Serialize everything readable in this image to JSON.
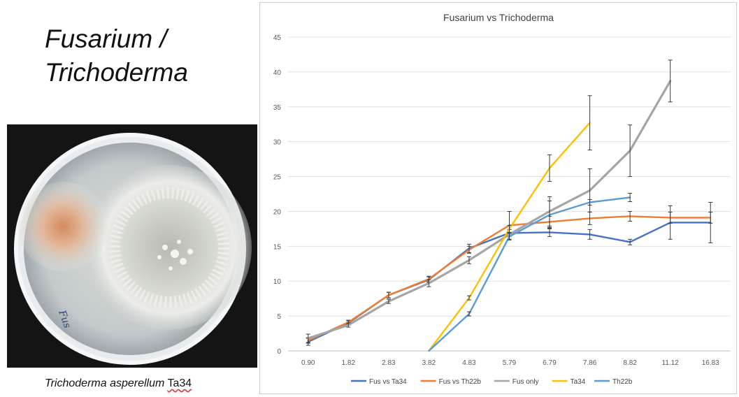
{
  "slide": {
    "title": "Fusarium /\nTrichoderma",
    "caption_species": "Trichoderma asperellum",
    "caption_strain": "Ta34"
  },
  "photo": {
    "handwritten_label": "Fus"
  },
  "chart_data": {
    "type": "line",
    "title": "Fusarium vs Trichoderma",
    "categories": [
      "0.90",
      "1.82",
      "2.83",
      "3.82",
      "4.83",
      "5.79",
      "6.79",
      "7.86",
      "8.82",
      "11.12",
      "16.83"
    ],
    "ylim": [
      0,
      45
    ],
    "yticks": [
      0,
      5,
      10,
      15,
      20,
      25,
      30,
      35,
      40,
      45
    ],
    "xlabel": "",
    "ylabel": "",
    "grid": "horizontal",
    "legend": "bottom",
    "series": [
      {
        "name": "Fus vs Ta34",
        "color": "#4472c4",
        "values": [
          1.3,
          4.0,
          8.0,
          10.2,
          14.7,
          16.9,
          17.0,
          16.7,
          15.6,
          18.4,
          18.4
        ],
        "errors": [
          0.5,
          0.3,
          0.4,
          0.4,
          0.6,
          0.5,
          0.6,
          0.7,
          0.4,
          2.4,
          2.9
        ]
      },
      {
        "name": "Fus vs Th22b",
        "color": "#ed7d31",
        "values": [
          1.5,
          4.1,
          8.0,
          10.3,
          14.5,
          18.0,
          18.5,
          19.0,
          19.3,
          19.1,
          19.1
        ],
        "errors": [
          0.4,
          0.3,
          0.4,
          0.4,
          0.5,
          2.0,
          0.8,
          0.9,
          0.7,
          0.8,
          0.8
        ]
      },
      {
        "name": "Fus only",
        "color": "#a5a5a5",
        "values": [
          1.8,
          3.7,
          7.1,
          9.7,
          13.0,
          16.7,
          20.0,
          23.0,
          28.7,
          38.7,
          null
        ],
        "errors": [
          0.6,
          0.3,
          0.3,
          0.5,
          0.5,
          0.7,
          2.1,
          3.1,
          3.7,
          3.0,
          null
        ]
      },
      {
        "name": "Ta34",
        "color": "#ffc000",
        "values": [
          null,
          null,
          null,
          0.0,
          7.6,
          17.5,
          26.2,
          32.7,
          null,
          null,
          null
        ],
        "errors": [
          null,
          null,
          null,
          0.0,
          0.3,
          0.5,
          1.9,
          3.9,
          null,
          null,
          null
        ]
      },
      {
        "name": "Th22b",
        "color": "#5b9bd5",
        "values": [
          null,
          null,
          null,
          0.0,
          5.3,
          16.4,
          19.5,
          21.3,
          22.0,
          null,
          null
        ],
        "errors": [
          null,
          null,
          null,
          0.0,
          0.3,
          0.5,
          2.0,
          0.4,
          0.6,
          null,
          null
        ]
      }
    ]
  }
}
